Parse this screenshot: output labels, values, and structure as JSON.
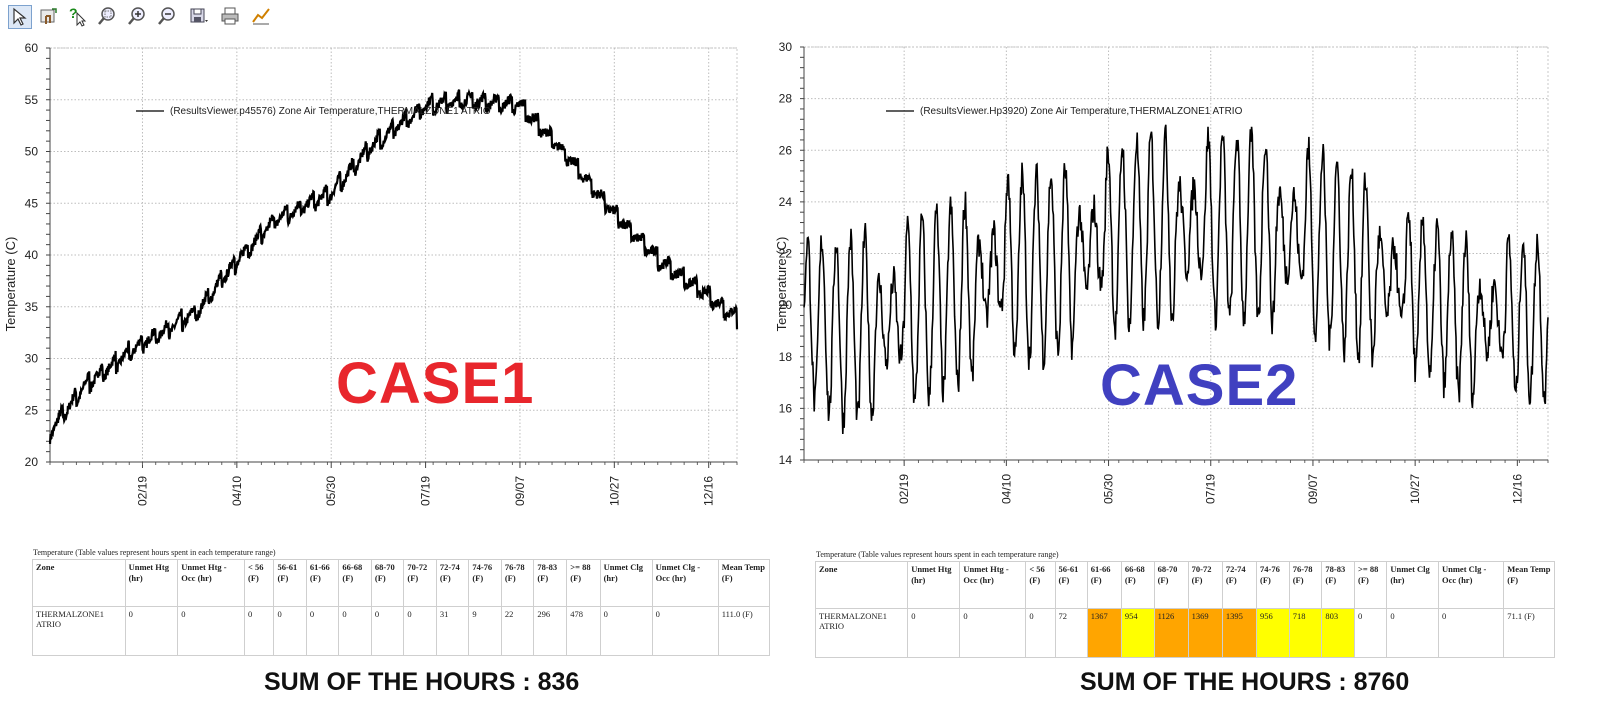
{
  "toolbar": {
    "tools": [
      {
        "icon": "pointer-select-icon"
      },
      {
        "icon": "hand-pan-icon"
      },
      {
        "icon": "help-pointer-icon"
      },
      {
        "icon": "zoom-region-icon"
      },
      {
        "icon": "zoom-in-icon"
      },
      {
        "icon": "zoom-out-icon"
      },
      {
        "icon": "save-image-icon"
      },
      {
        "icon": "print-icon"
      },
      {
        "icon": "chart-properties-icon"
      }
    ]
  },
  "chart_data": [
    {
      "type": "line",
      "ylabel": "Temperature (C)",
      "ylim": [
        20,
        60
      ],
      "yticks": [
        "20",
        "25",
        "30",
        "35",
        "40",
        "45",
        "50",
        "55",
        "60"
      ],
      "xticks": [
        "02/19",
        "04/10",
        "05/30",
        "07/19",
        "09/07",
        "10/27",
        "12/16"
      ],
      "legend": "(ResultsViewer.p45576) Zone Air Temperature,THERMALZONE1 ATRIO",
      "legend_placement": "top-left",
      "grid": true,
      "series": [
        {
          "x": [
            "01/01",
            "01/20",
            "02/19",
            "03/20",
            "04/10",
            "05/01",
            "05/30",
            "06/20",
            "07/19",
            "08/10",
            "09/07",
            "09/30",
            "10/27",
            "11/20",
            "12/16",
            "12/31"
          ],
          "values": [
            23,
            27.5,
            31.5,
            34.5,
            39.5,
            43.5,
            46,
            50.5,
            54.5,
            55,
            54.5,
            50,
            44,
            39.5,
            36,
            34
          ]
        }
      ]
    },
    {
      "type": "line",
      "ylabel": "Temperature (C)",
      "ylim": [
        14,
        30
      ],
      "yticks": [
        "14",
        "16",
        "18",
        "20",
        "22",
        "24",
        "26",
        "28",
        "30"
      ],
      "xticks": [
        "02/19",
        "04/10",
        "05/30",
        "07/19",
        "09/07",
        "10/27",
        "12/16"
      ],
      "legend": "(ResultsViewer.Hp3920) Zone Air Temperature,THERMALZONE1 ATRIO",
      "legend_placement": "top-left",
      "grid": true,
      "series": [
        {
          "x": [
            "01/01",
            "01/20",
            "02/19",
            "03/20",
            "04/10",
            "05/01",
            "05/30",
            "06/20",
            "07/19",
            "08/10",
            "09/07",
            "09/30",
            "10/27",
            "11/20",
            "12/16",
            "12/31"
          ],
          "values": [
            19.5,
            19,
            19.5,
            20.5,
            21.5,
            21.5,
            22.5,
            23,
            23,
            23,
            22.5,
            21.5,
            20.5,
            19.5,
            19.5,
            19.5
          ],
          "swing": [
            3,
            3.5,
            3.5,
            3.5,
            3.5,
            3.5,
            3.5,
            3.5,
            3.5,
            3.5,
            3.5,
            3.5,
            3,
            3,
            3,
            3
          ]
        }
      ]
    }
  ],
  "cases": {
    "case1": {
      "label": "CASE1",
      "color": "#e8262c"
    },
    "case2": {
      "label": "CASE2",
      "color": "#4040c0"
    }
  },
  "tables": [
    {
      "caption": "Temperature (Table values represent hours spent in each temperature range)",
      "headers": [
        "Zone",
        "Unmet Htg (hr)",
        "Unmet Htg - Occ (hr)",
        "< 56 (F)",
        "56-61 (F)",
        "61-66 (F)",
        "66-68 (F)",
        "68-70 (F)",
        "70-72 (F)",
        "72-74 (F)",
        "74-76 (F)",
        "76-78 (F)",
        "78-83 (F)",
        ">= 88 (F)",
        "Unmet Clg (hr)",
        "Unmet Clg - Occ (hr)",
        "Mean Temp (F)"
      ],
      "row": [
        "THERMALZONE1 ATRIO",
        "0",
        "0",
        "0",
        "0",
        "0",
        "0",
        "0",
        "0",
        "31",
        "9",
        "22",
        "296",
        "478",
        "0",
        "0",
        "111.0 (F)"
      ],
      "highlight": [
        "",
        "",
        "",
        "",
        "",
        "",
        "",
        "",
        "",
        "",
        "",
        "",
        "",
        "",
        "",
        "",
        ""
      ]
    },
    {
      "caption": "Temperature (Table values represent hours spent in each temperature range)",
      "headers": [
        "Zone",
        "Unmet Htg (hr)",
        "Unmet Htg - Occ (hr)",
        "< 56 (F)",
        "56-61 (F)",
        "61-66 (F)",
        "66-68 (F)",
        "68-70 (F)",
        "70-72 (F)",
        "72-74 (F)",
        "74-76 (F)",
        "76-78 (F)",
        "78-83 (F)",
        ">= 88 (F)",
        "Unmet Clg (hr)",
        "Unmet Clg - Occ (hr)",
        "Mean Temp (F)"
      ],
      "row": [
        "THERMALZONE1 ATRIO",
        "0",
        "0",
        "0",
        "72",
        "1367",
        "954",
        "1126",
        "1369",
        "1395",
        "956",
        "718",
        "803",
        "0",
        "0",
        "0",
        "71.1 (F)"
      ],
      "highlight": [
        "",
        "",
        "",
        "",
        "",
        "orange",
        "yellow",
        "orange",
        "orange",
        "orange",
        "yellow",
        "yellow",
        "yellow",
        "",
        "",
        "",
        ""
      ]
    }
  ],
  "sums": {
    "case1": "SUM OF THE HOURS : 836",
    "case2": "SUM OF THE HOURS : 8760"
  }
}
